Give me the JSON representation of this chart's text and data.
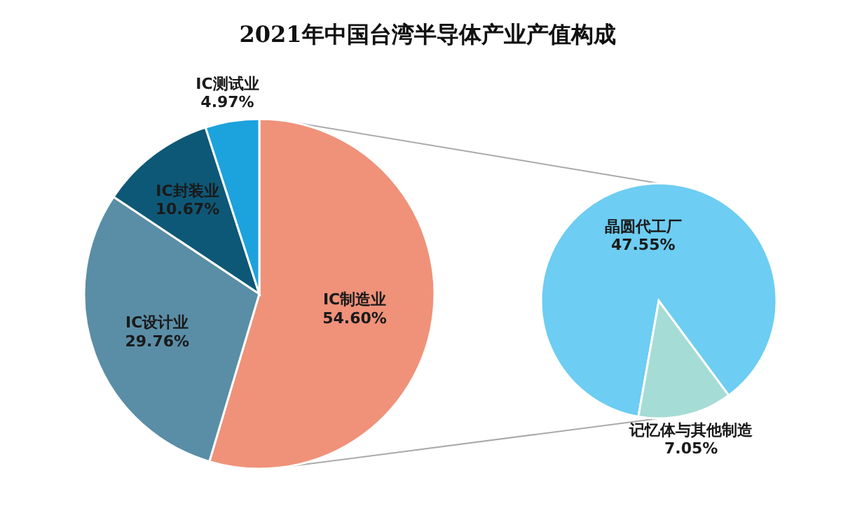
{
  "chart_data": [
    {
      "type": "pie",
      "title": "2021年中国台湾半导体产业产值构成",
      "categories": [
        "IC制造业",
        "IC设计业",
        "IC封装业",
        "IC测试业"
      ],
      "values": [
        54.6,
        29.76,
        10.67,
        4.97
      ],
      "colors": [
        "#ef9279",
        "#5a8ea6",
        "#0e5877",
        "#1ca2dc"
      ],
      "value_labels": [
        "54.60%",
        "29.76%",
        "10.67%",
        "4.97%"
      ]
    },
    {
      "type": "pie",
      "categories": [
        "晶圆代工厂",
        "记忆体与其他制造"
      ],
      "values": [
        47.55,
        7.05
      ],
      "colors": [
        "#6dcdf2",
        "#a6dcd6"
      ],
      "value_labels": [
        "47.55%",
        "7.05%"
      ]
    }
  ]
}
